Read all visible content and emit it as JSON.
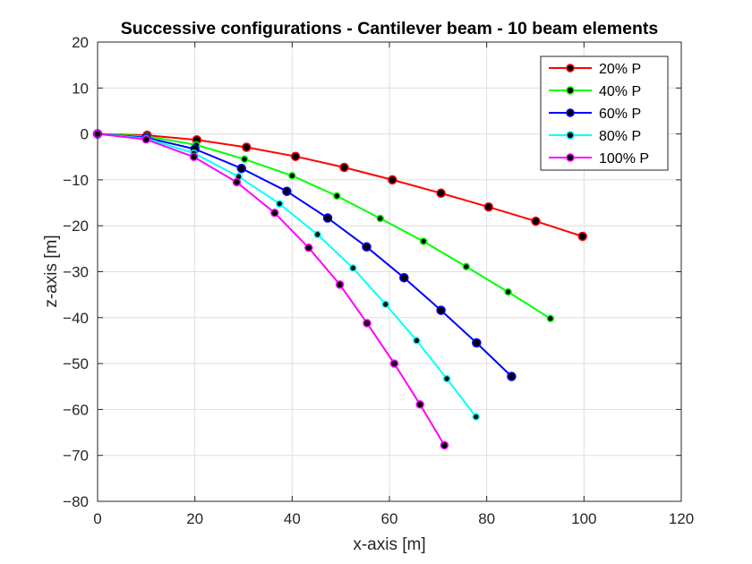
{
  "chart_data": {
    "type": "line",
    "title": "Successive configurations - Cantilever beam - 10 beam elements",
    "xlabel": "x-axis [m]",
    "ylabel": "z-axis [m]",
    "xlim": [
      0,
      120
    ],
    "ylim": [
      -80,
      20
    ],
    "xticks": [
      0,
      20,
      40,
      60,
      80,
      100,
      120
    ],
    "yticks": [
      20,
      10,
      0,
      -10,
      -20,
      -30,
      -40,
      -50,
      -60,
      -70,
      -80
    ],
    "grid": true,
    "legend_position": "top-right",
    "series": [
      {
        "name": "20% P",
        "color": "#ff0000",
        "x": [
          0,
          10.2,
          20.4,
          30.6,
          40.7,
          50.7,
          60.6,
          70.6,
          80.4,
          90.1,
          99.7
        ],
        "y": [
          0,
          -0.3,
          -1.3,
          -2.9,
          -4.9,
          -7.3,
          -10.0,
          -12.9,
          -15.9,
          -19.0,
          -22.3
        ]
      },
      {
        "name": "40% P",
        "color": "#00ff00",
        "x": [
          0,
          10.1,
          20.3,
          30.2,
          40.0,
          49.2,
          58.1,
          67.0,
          75.8,
          84.4,
          93.1
        ],
        "y": [
          0,
          -0.5,
          -2.4,
          -5.5,
          -9.1,
          -13.5,
          -18.4,
          -23.4,
          -28.9,
          -34.4,
          -40.2
        ]
      },
      {
        "name": "60% P",
        "color": "#0000ff",
        "x": [
          0,
          10.0,
          20.0,
          29.6,
          38.9,
          47.3,
          55.3,
          63.0,
          70.6,
          77.9,
          85.1
        ],
        "y": [
          0,
          -0.8,
          -3.3,
          -7.5,
          -12.5,
          -18.3,
          -24.6,
          -31.3,
          -38.4,
          -45.5,
          -52.8
        ]
      },
      {
        "name": "80% P",
        "color": "#00ffff",
        "x": [
          0,
          10.0,
          19.8,
          29.0,
          37.4,
          45.2,
          52.5,
          59.2,
          65.6,
          71.8,
          77.8
        ],
        "y": [
          0,
          -1.0,
          -4.2,
          -9.3,
          -15.2,
          -21.9,
          -29.2,
          -37.1,
          -45.0,
          -53.3,
          -61.6
        ]
      },
      {
        "name": "100% P",
        "color": "#ff00ff",
        "x": [
          0,
          10.0,
          19.8,
          28.6,
          36.4,
          43.4,
          49.8,
          55.4,
          61.0,
          66.3,
          71.3
        ],
        "y": [
          0,
          -1.2,
          -5.0,
          -10.5,
          -17.2,
          -24.8,
          -32.8,
          -41.2,
          -50.0,
          -58.9,
          -67.8
        ]
      }
    ]
  }
}
